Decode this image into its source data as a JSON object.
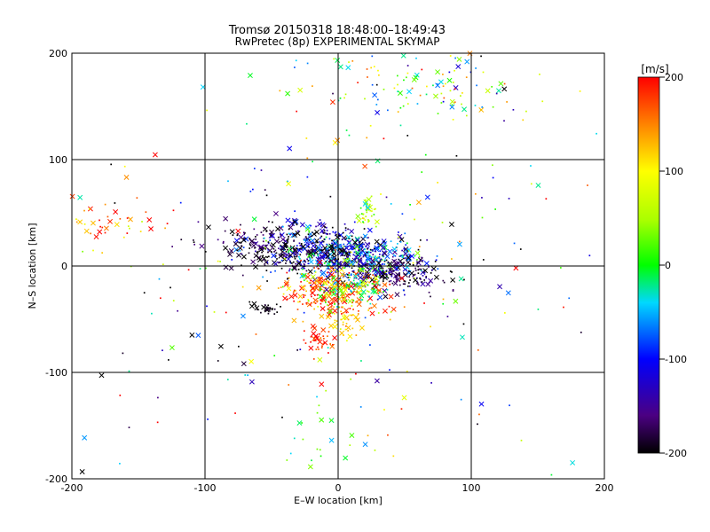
{
  "chart_data": {
    "type": "scatter",
    "title": "Tromsø 20150318 18:48:00–18:49:43",
    "subtitle": "RwPretec (8p) EXPERIMENTAL SKYMAP",
    "xlabel": "E–W location [km]",
    "ylabel": "N–S location [km]",
    "xlim": [
      -200,
      200
    ],
    "ylim": [
      -200,
      200
    ],
    "xticks": [
      -200,
      -100,
      0,
      100,
      200
    ],
    "yticks": [
      -200,
      -100,
      0,
      100,
      200
    ],
    "grid": true,
    "colorbar": {
      "label": "[m/s]",
      "range": [
        -200,
        200
      ],
      "ticks": [
        200,
        100,
        0,
        -100,
        -200
      ]
    },
    "marker_types": [
      "x",
      "dot"
    ],
    "clusters": [
      {
        "cx": -15,
        "cy": 15,
        "sx": 25,
        "sy": 12,
        "n": 420,
        "vmean": -150,
        "vsd": 70
      },
      {
        "cx": 25,
        "cy": 5,
        "sx": 22,
        "sy": 10,
        "n": 300,
        "vmean": -90,
        "vsd": 80
      },
      {
        "cx": 45,
        "cy": -10,
        "sx": 18,
        "sy": 8,
        "n": 150,
        "vmean": -180,
        "vsd": 30
      },
      {
        "cx": -5,
        "cy": -25,
        "sx": 20,
        "sy": 12,
        "n": 260,
        "vmean": 170,
        "vsd": 40
      },
      {
        "cx": 10,
        "cy": -20,
        "sx": 15,
        "sy": 10,
        "n": 120,
        "vmean": 20,
        "vsd": 60
      },
      {
        "cx": -50,
        "cy": 20,
        "sx": 25,
        "sy": 10,
        "n": 140,
        "vmean": -190,
        "vsd": 25
      },
      {
        "cx": -15,
        "cy": -70,
        "sx": 6,
        "sy": 6,
        "n": 40,
        "vmean": 185,
        "vsd": 20
      },
      {
        "cx": 5,
        "cy": -55,
        "sx": 6,
        "sy": 6,
        "n": 30,
        "vmean": 120,
        "vsd": 15
      },
      {
        "cx": 22,
        "cy": 50,
        "sx": 4,
        "sy": 6,
        "n": 35,
        "vmean": 60,
        "vsd": 25
      },
      {
        "cx": -55,
        "cy": -40,
        "sx": 6,
        "sy": 3,
        "n": 25,
        "vmean": -200,
        "vsd": 10
      },
      {
        "cx": 65,
        "cy": 170,
        "sx": 40,
        "sy": 20,
        "n": 130,
        "vmean": 40,
        "vsd": 110
      },
      {
        "cx": -165,
        "cy": 40,
        "sx": 20,
        "sy": 10,
        "n": 40,
        "vmean": 180,
        "vsd": 60
      },
      {
        "cx": -15,
        "cy": -160,
        "sx": 12,
        "sy": 20,
        "n": 20,
        "vmean": 10,
        "vsd": 40
      },
      {
        "cx": 0,
        "cy": 0,
        "sx": 120,
        "sy": 110,
        "n": 260,
        "vmean": 0,
        "vsd": 150
      }
    ]
  }
}
